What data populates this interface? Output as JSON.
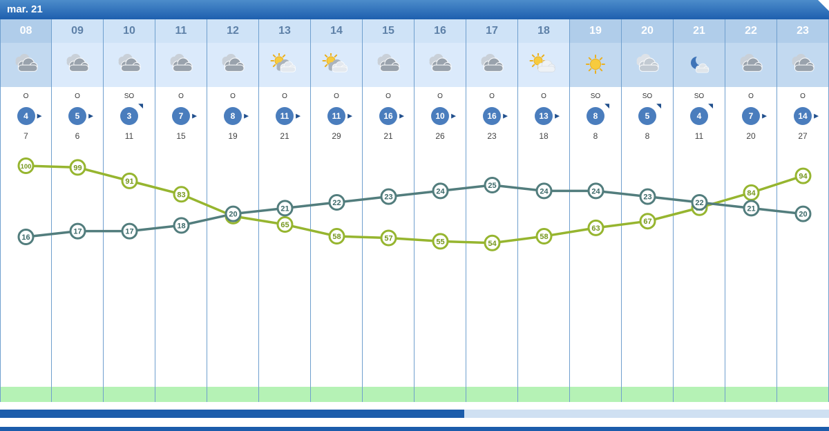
{
  "header": {
    "date_label": "mar. 21"
  },
  "colors": {
    "titlebar_blue": "#2e6cb3",
    "wind_circle_blue": "#4a7dbd",
    "humidity_green": "#96b52f",
    "temperature_teal": "#527d7d",
    "precip_band_green": "#b5f2b5",
    "scrollbar_blue": "#1b5cab"
  },
  "columns": [
    {
      "hour": "08",
      "highlight": true,
      "icon": "cloudy",
      "wind_dir": "O",
      "wind_speed": 4,
      "arrow": "right",
      "gust": 7
    },
    {
      "hour": "09",
      "highlight": false,
      "icon": "cloudy",
      "wind_dir": "O",
      "wind_speed": 5,
      "arrow": "right",
      "gust": 6
    },
    {
      "hour": "10",
      "highlight": false,
      "icon": "cloudy",
      "wind_dir": "SO",
      "wind_speed": 3,
      "arrow": "ne",
      "gust": 11
    },
    {
      "hour": "11",
      "highlight": false,
      "icon": "cloudy",
      "wind_dir": "O",
      "wind_speed": 7,
      "arrow": "right",
      "gust": 15
    },
    {
      "hour": "12",
      "highlight": false,
      "icon": "cloudy",
      "wind_dir": "O",
      "wind_speed": 8,
      "arrow": "right",
      "gust": 19
    },
    {
      "hour": "13",
      "highlight": false,
      "icon": "sun-cloud",
      "wind_dir": "O",
      "wind_speed": 11,
      "arrow": "right",
      "gust": 21
    },
    {
      "hour": "14",
      "highlight": false,
      "icon": "sun-cloud",
      "wind_dir": "O",
      "wind_speed": 11,
      "arrow": "right",
      "gust": 29
    },
    {
      "hour": "15",
      "highlight": false,
      "icon": "cloudy",
      "wind_dir": "O",
      "wind_speed": 16,
      "arrow": "right",
      "gust": 21
    },
    {
      "hour": "16",
      "highlight": false,
      "icon": "cloudy",
      "wind_dir": "O",
      "wind_speed": 10,
      "arrow": "right",
      "gust": 26
    },
    {
      "hour": "17",
      "highlight": false,
      "icon": "cloudy",
      "wind_dir": "O",
      "wind_speed": 16,
      "arrow": "right",
      "gust": 23
    },
    {
      "hour": "18",
      "highlight": false,
      "icon": "sun-cloud-light",
      "wind_dir": "O",
      "wind_speed": 13,
      "arrow": "right",
      "gust": 18
    },
    {
      "hour": "19",
      "highlight": true,
      "icon": "sunny",
      "wind_dir": "SO",
      "wind_speed": 8,
      "arrow": "ne",
      "gust": 8
    },
    {
      "hour": "20",
      "highlight": true,
      "icon": "cloudy-light",
      "wind_dir": "SO",
      "wind_speed": 5,
      "arrow": "ne",
      "gust": 8
    },
    {
      "hour": "21",
      "highlight": true,
      "icon": "moon-cloud",
      "wind_dir": "SO",
      "wind_speed": 4,
      "arrow": "ne",
      "gust": 11
    },
    {
      "hour": "22",
      "highlight": true,
      "icon": "cloudy",
      "wind_dir": "O",
      "wind_speed": 7,
      "arrow": "right",
      "gust": 20
    },
    {
      "hour": "23",
      "highlight": true,
      "icon": "cloudy",
      "wind_dir": "O",
      "wind_speed": 14,
      "arrow": "right",
      "gust": 27
    }
  ],
  "chart_data": {
    "type": "line",
    "x": [
      "08",
      "09",
      "10",
      "11",
      "12",
      "13",
      "14",
      "15",
      "16",
      "17",
      "18",
      "19",
      "20",
      "21",
      "22",
      "23"
    ],
    "series": [
      {
        "name": "humidity",
        "color": "#96b52f",
        "label_color": "#76971f",
        "values": [
          100,
          99,
          91,
          83,
          70,
          65,
          58,
          57,
          55,
          54,
          58,
          63,
          67,
          75,
          84,
          94
        ],
        "ylim": [
          0,
          100
        ]
      },
      {
        "name": "temperature",
        "color": "#527d7d",
        "label_color": "#3d6a6a",
        "values": [
          16,
          17,
          17,
          18,
          20,
          21,
          22,
          23,
          24,
          25,
          24,
          24,
          23,
          22,
          21,
          20
        ],
        "ylim": [
          14,
          30
        ]
      }
    ],
    "title": "",
    "xlabel": "",
    "ylabel": "",
    "grid": false,
    "legend": "none"
  },
  "scrollbar": {
    "fraction": 0.56
  }
}
